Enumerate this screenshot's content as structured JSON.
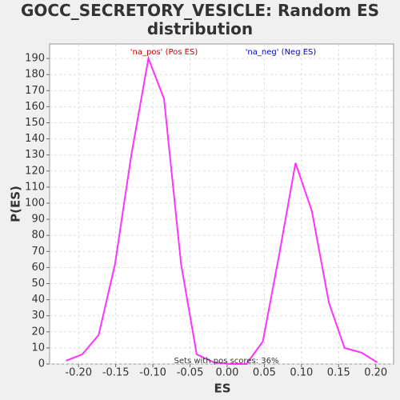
{
  "chart_data": {
    "type": "line",
    "title": "GOCC_SECRETORY_VESICLE: Random ES distribution",
    "xlabel": "ES",
    "ylabel": "P(ES)",
    "annotations": [
      "'na_pos' (Pos ES)",
      "'na_neg' (Neg ES)",
      "Sets with pos scores: 36%"
    ],
    "annotation_colors": [
      "#cc0000",
      "#0000cc",
      "#333333"
    ],
    "x": [
      -0.217,
      -0.195,
      -0.173,
      -0.151,
      -0.129,
      -0.106,
      -0.085,
      -0.062,
      -0.041,
      -0.018,
      0.004,
      0.026,
      0.048,
      0.07,
      0.092,
      0.114,
      0.137,
      0.158,
      0.181,
      0.202
    ],
    "series": [
      {
        "name": "P(ES)",
        "color": "#ff33ff",
        "values": [
          2,
          6,
          18,
          62,
          130,
          190,
          165,
          62,
          6,
          1,
          0,
          0,
          14,
          68,
          125,
          95,
          38,
          10,
          7,
          1
        ]
      }
    ],
    "xlim": [
      -0.239,
      0.224
    ],
    "ylim": [
      0,
      199
    ],
    "xticks": [
      {
        "value": -0.2,
        "label": "-0.20"
      },
      {
        "value": -0.15,
        "label": "-0.15"
      },
      {
        "value": -0.1,
        "label": "-0.10"
      },
      {
        "value": -0.05,
        "label": "-0.05"
      },
      {
        "value": 0,
        "label": "0.00"
      },
      {
        "value": 0.05,
        "label": "0.05"
      },
      {
        "value": 0.1,
        "label": "0.10"
      },
      {
        "value": 0.15,
        "label": "0.15"
      },
      {
        "value": 0.2,
        "label": "0.20"
      }
    ],
    "yticks": [
      0,
      10,
      20,
      30,
      40,
      50,
      60,
      70,
      80,
      90,
      100,
      110,
      120,
      130,
      140,
      150,
      160,
      170,
      180,
      190
    ],
    "grid": true
  }
}
